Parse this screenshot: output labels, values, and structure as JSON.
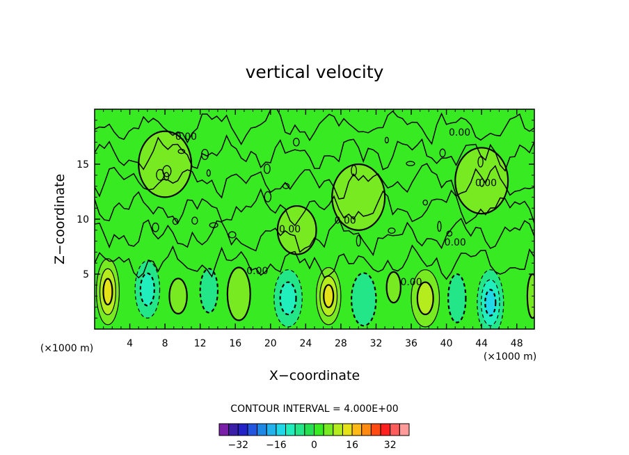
{
  "chart_data": {
    "type": "heatmap",
    "title": "vertical velocity",
    "xlabel": "X−coordinate",
    "ylabel": "Z−coordinate",
    "x_unit_left": "(×1000 m)",
    "x_unit_right": "(×1000 m)",
    "xlim": [
      0,
      50
    ],
    "ylim": [
      0,
      20
    ],
    "x_ticks": [
      {
        "value": 4,
        "label": "4"
      },
      {
        "value": 8,
        "label": "8"
      },
      {
        "value": 12,
        "label": "12"
      },
      {
        "value": 16,
        "label": "16"
      },
      {
        "value": 20,
        "label": "20"
      },
      {
        "value": 24,
        "label": "24"
      },
      {
        "value": 28,
        "label": "28"
      },
      {
        "value": 32,
        "label": "32"
      },
      {
        "value": 36,
        "label": "36"
      },
      {
        "value": 40,
        "label": "40"
      },
      {
        "value": 44,
        "label": "44"
      },
      {
        "value": 48,
        "label": "48"
      }
    ],
    "y_ticks": [
      {
        "value": 5,
        "label": "5"
      },
      {
        "value": 10,
        "label": "10"
      },
      {
        "value": 15,
        "label": "15"
      }
    ],
    "background_value": 0,
    "contour_interval_label": "CONTOUR INTERVAL = 4.000E+00",
    "contour_labels": [
      {
        "x": 10.4,
        "y": 17.2,
        "text": "0.00"
      },
      {
        "x": 28.5,
        "y": 9.6,
        "text": "0.00"
      },
      {
        "x": 22.2,
        "y": 8.8,
        "text": "0.00"
      },
      {
        "x": 41.0,
        "y": 7.6,
        "text": "0.00"
      },
      {
        "x": 18.5,
        "y": 5.0,
        "text": "0.00"
      },
      {
        "x": 36.0,
        "y": 4.0,
        "text": "0.00"
      },
      {
        "x": 41.5,
        "y": 17.6,
        "text": "0.00"
      },
      {
        "x": 44.5,
        "y": 13.0,
        "text": "0.00"
      }
    ],
    "cells": [
      {
        "x": 1.5,
        "y": 3.4,
        "sx": 1.3,
        "sy": 3.0,
        "value": 12
      },
      {
        "x": 26.6,
        "y": 3.0,
        "sx": 1.4,
        "sy": 2.6,
        "value": 12
      },
      {
        "x": 37.6,
        "y": 2.8,
        "sx": 1.6,
        "sy": 2.6,
        "value": 8
      },
      {
        "x": 16.4,
        "y": 3.2,
        "sx": 1.3,
        "sy": 2.4,
        "value": 6
      },
      {
        "x": 6.0,
        "y": 3.6,
        "sx": 1.4,
        "sy": 2.6,
        "value": -8
      },
      {
        "x": 45.0,
        "y": 2.4,
        "sx": 1.5,
        "sy": 3.0,
        "value": -12
      },
      {
        "x": 22.0,
        "y": 2.8,
        "sx": 1.6,
        "sy": 2.6,
        "value": -8
      },
      {
        "x": 30.6,
        "y": 2.7,
        "sx": 1.4,
        "sy": 2.4,
        "value": -6
      },
      {
        "x": 13.0,
        "y": 3.5,
        "sx": 1.0,
        "sy": 2.0,
        "value": -4
      },
      {
        "x": 41.2,
        "y": 2.8,
        "sx": 1.0,
        "sy": 2.2,
        "value": -4
      },
      {
        "x": 34.0,
        "y": 3.8,
        "sx": 0.8,
        "sy": 1.4,
        "value": 4
      },
      {
        "x": 9.5,
        "y": 3.0,
        "sx": 1.0,
        "sy": 1.6,
        "value": 4
      },
      {
        "x": 49.8,
        "y": 3.0,
        "sx": 0.6,
        "sy": 2.0,
        "value": 4
      },
      {
        "x": 23.0,
        "y": 9.0,
        "sx": 2.2,
        "sy": 2.2,
        "value": 2
      },
      {
        "x": 30.0,
        "y": 12.0,
        "sx": 3.0,
        "sy": 3.0,
        "value": 2
      },
      {
        "x": 44.0,
        "y": 13.5,
        "sx": 3.0,
        "sy": 3.0,
        "value": 2
      },
      {
        "x": 8.0,
        "y": 15.0,
        "sx": 3.0,
        "sy": 3.0,
        "value": 2
      }
    ],
    "colorbar": {
      "colors": [
        "#7a1fa8",
        "#3b1fa8",
        "#2222c8",
        "#2255e0",
        "#1e88e6",
        "#22b2ec",
        "#20d8e8",
        "#20eebc",
        "#22e688",
        "#22e050",
        "#38ea22",
        "#78ea22",
        "#b4ec1e",
        "#e6e218",
        "#ffba16",
        "#ff8a12",
        "#ff4a12",
        "#ff2020",
        "#ff5c5c",
        "#ff9a9a"
      ],
      "vmin": -40,
      "vmax": 40,
      "tick_labels": [
        {
          "value": -32,
          "label": "−32"
        },
        {
          "value": -16,
          "label": "−16"
        },
        {
          "value": 0,
          "label": "0"
        },
        {
          "value": 16,
          "label": "16"
        },
        {
          "value": 32,
          "label": "32"
        }
      ]
    },
    "grid": false,
    "legend": "bottom"
  }
}
